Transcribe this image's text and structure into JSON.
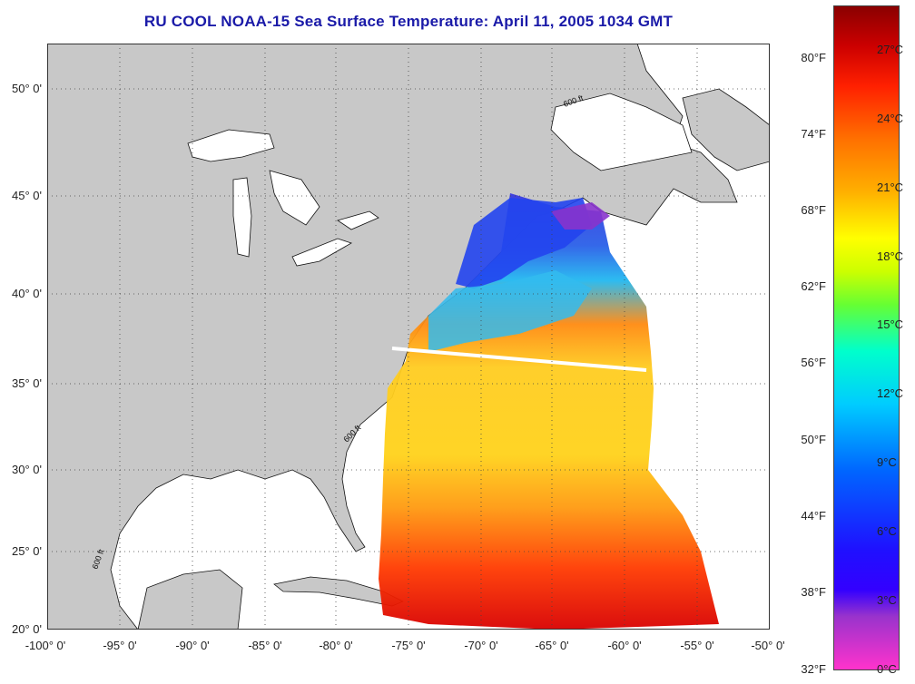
{
  "title": "RU COOL  NOAA-15  Sea Surface Temperature:  April 11, 2005 1034 GMT",
  "lat_labels": [
    "50° 0'",
    "45° 0'",
    "40° 0'",
    "35° 0'",
    "30° 0'",
    "25° 0'",
    "20° 0'"
  ],
  "lon_labels": [
    "-100° 0'",
    "-95° 0'",
    "-90° 0'",
    "-85° 0'",
    "-80° 0'",
    "-75° 0'",
    "-70° 0'",
    "-65° 0'",
    "-60° 0'",
    "-55° 0'",
    "-50° 0'"
  ],
  "colorbar": {
    "fahrenheit_labels": [
      "80°F",
      "74°F",
      "68°F",
      "62°F",
      "56°F",
      "50°F",
      "44°F",
      "38°F",
      "32°F"
    ],
    "celsius_labels": [
      "27°C",
      "24°C",
      "21°C",
      "18°C",
      "15°C",
      "12°C",
      "9°C",
      "6°C",
      "3°C",
      "0°C"
    ],
    "colors": [
      "#ff33cc",
      "#9933cc",
      "#1f00ff",
      "#0066ff",
      "#00ccff",
      "#00ffcc",
      "#66ff33",
      "#ffff00",
      "#ffb000",
      "#ff5a00",
      "#ff0000",
      "#8a0000"
    ]
  },
  "contour_label": "600 ft",
  "colors": {
    "land": "#c8c8c8",
    "ocean": "#ffffff",
    "title": "#1a1aa8"
  }
}
